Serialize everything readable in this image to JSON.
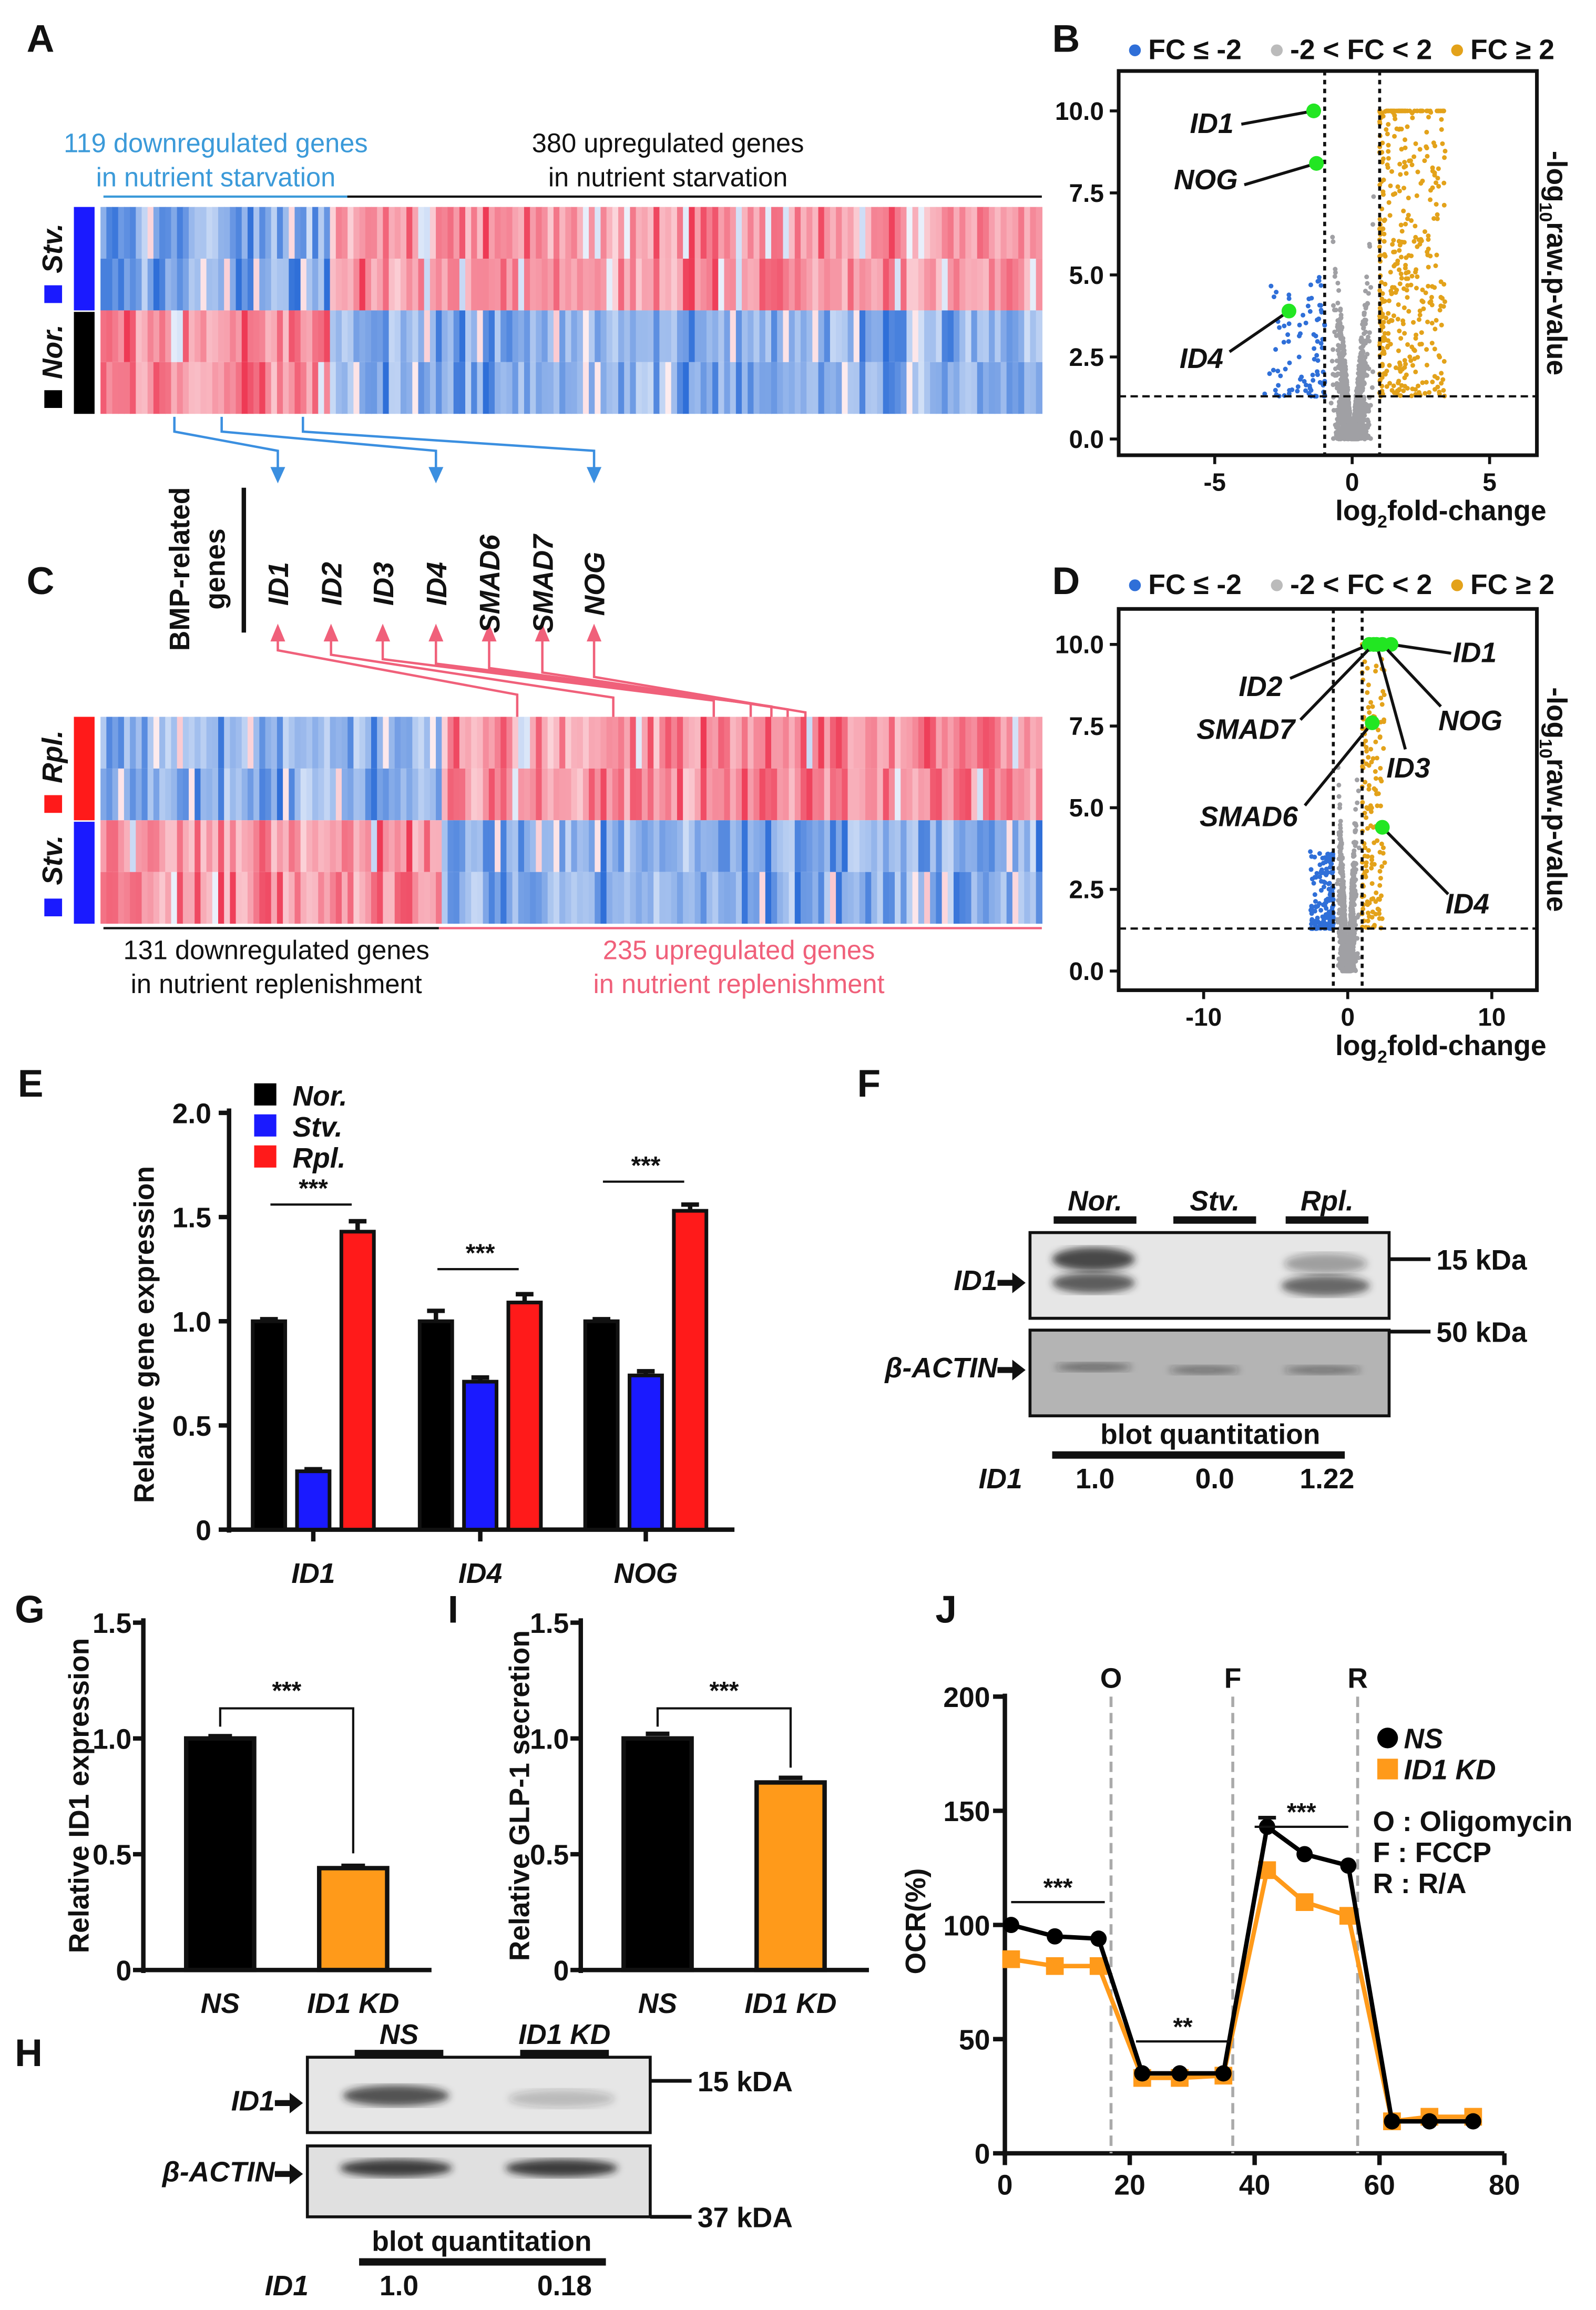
{
  "panel_letters": {
    "a": "A",
    "b": "B",
    "c": "C",
    "d": "D",
    "e": "E",
    "f": "F",
    "g": "G",
    "h": "H",
    "i": "I",
    "j": "J"
  },
  "colors": {
    "down_blue": "#2f6fd8",
    "up_red": "#ee3a55",
    "header_blue": "#3b9ad9",
    "header_pink": "#f0607a",
    "stv_blue": "#1a1aff",
    "rpl_red": "#ff1a1a",
    "nor_black": "#000000",
    "volcano_gray": "#a0a0a4",
    "volcano_blue": "#2f6fd8",
    "volcano_orange": "#e3a21a",
    "highlight_green": "#22e622",
    "ocr_orange": "#ff9a1a"
  },
  "panel_a": {
    "down_line1": "119 downregulated genes",
    "down_line2": "in nutrient starvation",
    "up_line1": "380 upregulated genes",
    "up_line2": "in nutrient starvation",
    "group_top": "Stv.",
    "group_bottom": "Nor."
  },
  "bmp": {
    "title_line1": "BMP-related",
    "title_line2": "genes",
    "genes": [
      "ID1",
      "ID2",
      "ID3",
      "ID4",
      "SMAD6",
      "SMAD7",
      "NOG"
    ]
  },
  "panel_c": {
    "down_line1": "131 downregulated genes",
    "down_line2": "in nutrient replenishment",
    "up_line1": "235 upregulated genes",
    "up_line2": "in nutrient replenishment",
    "group_top": "Rpl.",
    "group_bottom": "Stv."
  },
  "panel_f": {
    "lanes": [
      "Nor.",
      "Stv.",
      "Rpl."
    ],
    "band_top": "ID1",
    "band_bottom": "β-ACTIN",
    "marker_top": "15 kDa",
    "marker_bottom": "50 kDa",
    "quant_title": "blot quantitation",
    "quant_label": "ID1",
    "quant_values": [
      "1.0",
      "0.0",
      "1.22"
    ]
  },
  "panel_h": {
    "lanes": [
      "NS",
      "ID1 KD"
    ],
    "band_top": "ID1",
    "band_bottom": "β-ACTIN",
    "marker_top": "15 kDA",
    "marker_bottom": "37 kDA",
    "quant_title": "blot quantitation",
    "quant_label": "ID1",
    "quant_values": [
      "1.0",
      "0.18"
    ]
  },
  "chart_data": [
    {
      "id": "B",
      "type": "scatter",
      "title": "",
      "legend": [
        "FC ≤ -2",
        "-2 < FC < 2",
        "FC ≥ 2"
      ],
      "legend_placement": "top",
      "xlabel_parts": [
        "log",
        "2",
        "fold-change"
      ],
      "ylabel_parts": [
        "-log",
        "10",
        "raw.p-value"
      ],
      "xticks": [
        -5,
        0,
        5
      ],
      "yticks": [
        "0.0",
        "2.5",
        "5.0",
        "7.5",
        "10.0"
      ],
      "ytick_values": [
        0,
        2.5,
        5,
        7.5,
        10
      ],
      "xlim": [
        -6.7,
        6.7
      ],
      "ylim": [
        0,
        10.5
      ],
      "fc_cutoff_log2": 1,
      "p_cutoff_neglog10": 1.3,
      "highlighted": [
        {
          "label": "ID1",
          "x": -1.4,
          "y": 10
        },
        {
          "label": "NOG",
          "x": -1.3,
          "y": 8.4
        },
        {
          "label": "ID4",
          "x": -2.3,
          "y": 3.9
        }
      ]
    },
    {
      "id": "D",
      "type": "scatter",
      "title": "",
      "legend": [
        "FC ≤ -2",
        "-2 < FC < 2",
        "FC ≥ 2"
      ],
      "legend_placement": "top",
      "xlabel_parts": [
        "log",
        "2",
        "fold-change"
      ],
      "ylabel_parts": [
        "-log",
        "10",
        "raw.p-value"
      ],
      "xticks": [
        -10,
        0,
        10
      ],
      "yticks": [
        "0.0",
        "2.5",
        "5.0",
        "7.5",
        "10.0"
      ],
      "ytick_values": [
        0,
        2.5,
        5,
        7.5,
        10
      ],
      "xlim": [
        -13,
        13
      ],
      "ylim": [
        0,
        10.5
      ],
      "fc_cutoff_log2": 1,
      "p_cutoff_neglog10": 1.3,
      "highlighted": [
        {
          "label": "ID1",
          "x": 3.0,
          "y": 10
        },
        {
          "label": "ID2",
          "x": 1.5,
          "y": 10
        },
        {
          "label": "SMAD7",
          "x": 1.8,
          "y": 10
        },
        {
          "label": "NOG",
          "x": 2.4,
          "y": 10
        },
        {
          "label": "ID3",
          "x": 2.0,
          "y": 10
        },
        {
          "label": "SMAD6",
          "x": 1.7,
          "y": 7.6
        },
        {
          "label": "ID4",
          "x": 2.4,
          "y": 4.4
        }
      ]
    },
    {
      "id": "E",
      "type": "bar",
      "title": "",
      "xlabel": "",
      "ylabel": "Relative gene expression",
      "categories": [
        "ID1",
        "ID4",
        "NOG"
      ],
      "ylim": [
        0,
        2.0
      ],
      "yticks": [
        "0",
        "0.5",
        "1.0",
        "1.5",
        "2.0"
      ],
      "ytick_values": [
        0,
        0.5,
        1,
        1.5,
        2
      ],
      "series": [
        {
          "name": "Nor.",
          "color": "#000000",
          "values": [
            1.0,
            1.0,
            1.0
          ],
          "errors": [
            0.01,
            0.05,
            0.01
          ]
        },
        {
          "name": "Stv.",
          "color": "#1a1aff",
          "values": [
            0.28,
            0.71,
            0.74
          ],
          "errors": [
            0.01,
            0.02,
            0.02
          ]
        },
        {
          "name": "Rpl.",
          "color": "#ff1a1a",
          "values": [
            1.43,
            1.09,
            1.53
          ],
          "errors": [
            0.05,
            0.04,
            0.03
          ]
        }
      ],
      "significance": [
        {
          "category": "ID1",
          "label": "***",
          "y": 1.56
        },
        {
          "category": "ID4",
          "label": "***",
          "y": 1.25
        },
        {
          "category": "NOG",
          "label": "***",
          "y": 1.67
        }
      ],
      "legend_placement": "top-left"
    },
    {
      "id": "G",
      "type": "bar",
      "ylabel": "Relative ID1 expression",
      "categories": [
        "NS",
        "ID1 KD"
      ],
      "values": [
        1.0,
        0.44
      ],
      "errors": [
        0.01,
        0.01
      ],
      "colors": [
        "#000000",
        "#ff9a1a"
      ],
      "ylim": [
        0,
        1.5
      ],
      "yticks": [
        "0",
        "0.5",
        "1.0",
        "1.5"
      ],
      "ytick_values": [
        0,
        0.5,
        1,
        1.5
      ],
      "significance": "***"
    },
    {
      "id": "I",
      "type": "bar",
      "ylabel": "Relative GLP-1 secretion",
      "categories": [
        "NS",
        "ID1 KD"
      ],
      "values": [
        1.0,
        0.81
      ],
      "errors": [
        0.02,
        0.02
      ],
      "colors": [
        "#000000",
        "#ff9a1a"
      ],
      "ylim": [
        0,
        1.5
      ],
      "yticks": [
        "0",
        "0.5",
        "1.0",
        "1.5"
      ],
      "ytick_values": [
        0,
        0.5,
        1,
        1.5
      ],
      "significance": "***"
    },
    {
      "id": "J",
      "type": "line",
      "ylabel": "OCR(%)",
      "xlabel": "",
      "xlim": [
        0,
        80
      ],
      "ylim": [
        0,
        200
      ],
      "xticks": [
        0,
        20,
        40,
        60,
        80
      ],
      "yticks": [
        0,
        50,
        100,
        150,
        200
      ],
      "x": [
        1,
        8,
        15,
        22,
        28,
        35,
        42,
        48,
        55,
        62,
        68,
        75
      ],
      "series": [
        {
          "name": "NS",
          "marker": "circle",
          "color": "#000000",
          "values": [
            100,
            95,
            94,
            35,
            35,
            35,
            143,
            131,
            126,
            14,
            14,
            14
          ]
        },
        {
          "name": "ID1 KD",
          "marker": "square",
          "color": "#ff9a1a",
          "values": [
            85,
            82,
            82,
            33,
            33,
            34,
            124,
            110,
            104,
            14,
            16,
            16
          ]
        }
      ],
      "injections": [
        {
          "label": "O",
          "x": 17
        },
        {
          "label": "F",
          "x": 36.5
        },
        {
          "label": "R",
          "x": 56.5
        }
      ],
      "injection_legend": [
        "O : Oligomycin",
        "F : FCCP",
        "R : R/A"
      ],
      "significance": [
        {
          "x": [
            1,
            16
          ],
          "y": 110,
          "label": "***"
        },
        {
          "x": [
            21,
            36
          ],
          "y": 49,
          "label": "**"
        },
        {
          "x": [
            40,
            55
          ],
          "y": 143,
          "label": "***"
        }
      ],
      "legend_placement": "right"
    }
  ]
}
